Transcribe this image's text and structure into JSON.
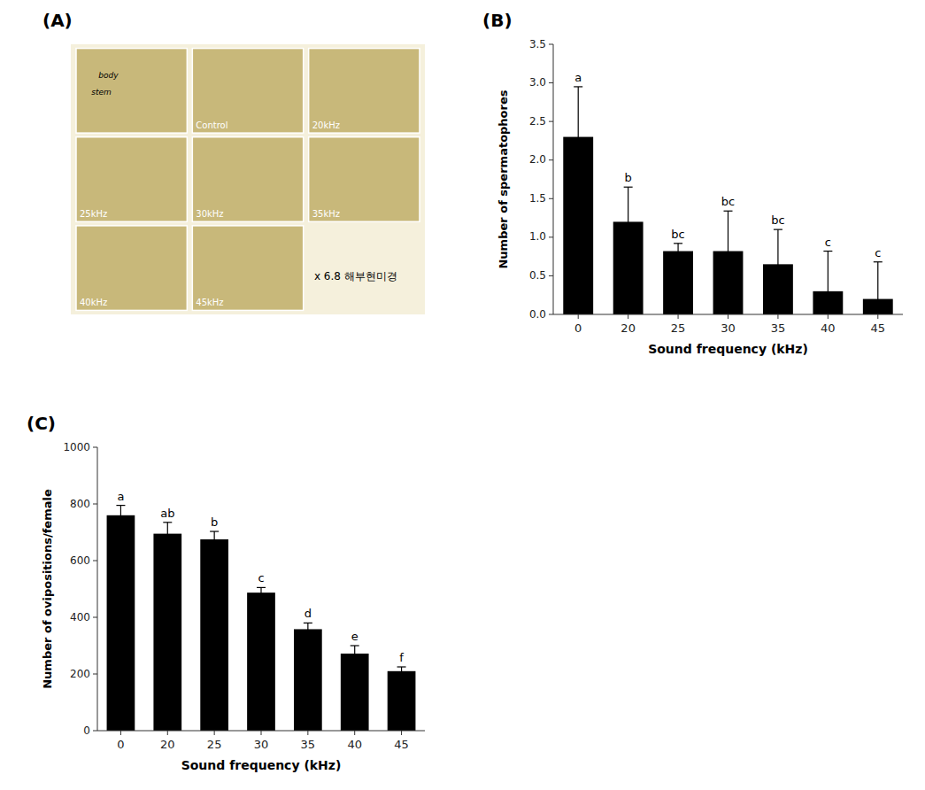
{
  "chart_data": [
    {
      "type": "image_grid",
      "title": "(A)",
      "color": "#c8b87a",
      "categories": [
        null,
        "Control",
        "20kHz",
        "25kHz",
        "30kHz",
        "35kHz",
        "40kHz",
        "45kHz"
      ],
      "annotations": [
        "body",
        "stem",
        "x 6.8 해부현미경"
      ]
    },
    {
      "type": "bar",
      "title": "(B)",
      "categories": [
        "0",
        "20",
        "25",
        "30",
        "35",
        "40",
        "45"
      ],
      "values": [
        2.3,
        1.2,
        0.82,
        0.82,
        0.65,
        0.3,
        0.2
      ],
      "errors": [
        0.65,
        0.45,
        0.1,
        0.52,
        0.45,
        0.52,
        0.48
      ],
      "annotations": [
        "a",
        "b",
        "bc",
        "bc",
        "bc",
        "c",
        "c"
      ],
      "xlabel": "Sound frequency (kHz)",
      "ylabel": "Number of spermatophores",
      "ylim": [
        0,
        3.5
      ],
      "yticks": [
        {
          "value": 0.0,
          "label": "0.0"
        },
        0.5,
        {
          "value": 1.0,
          "label": "1.0"
        },
        1.5,
        {
          "value": 2.0,
          "label": "2.0"
        },
        2.5,
        {
          "value": 3.0,
          "label": "3.0"
        },
        3.5
      ],
      "color": "#000000",
      "grid": false
    },
    {
      "type": "bar",
      "title": "(C)",
      "categories": [
        "0",
        "20",
        "25",
        "30",
        "35",
        "40",
        "45"
      ],
      "values": [
        760,
        695,
        675,
        487,
        358,
        272,
        210
      ],
      "errors": [
        35,
        40,
        28,
        18,
        22,
        28,
        15
      ],
      "annotations": [
        "a",
        "ab",
        "b",
        "c",
        "d",
        "e",
        "f"
      ],
      "xlabel": "Sound frequency (kHz)",
      "ylabel": "Number of ovipositions/female",
      "ylim": [
        0,
        1000
      ],
      "yticks": [
        0,
        200,
        400,
        600,
        800,
        1000
      ],
      "color": "#000000",
      "grid": false
    }
  ]
}
